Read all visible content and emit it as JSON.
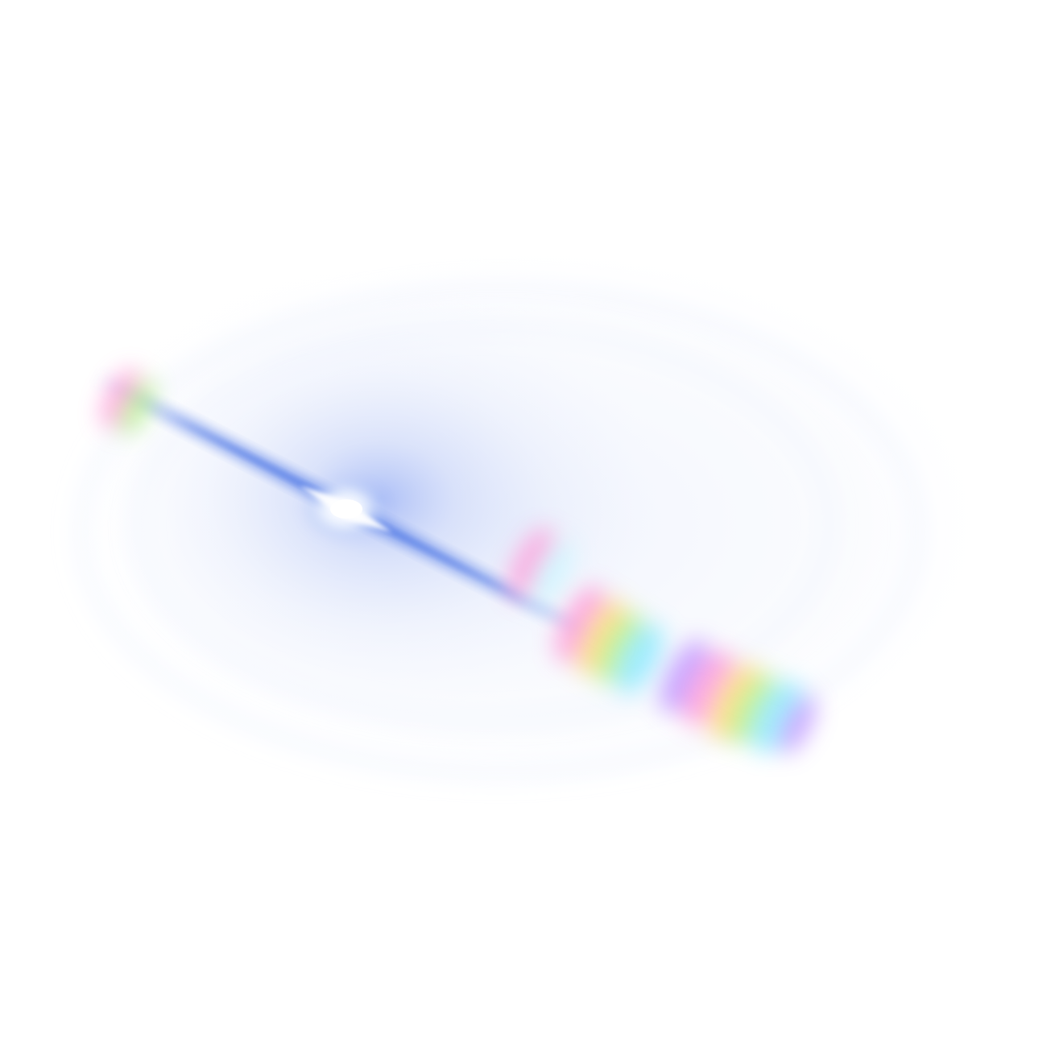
{
  "image": {
    "subject": "lens-flare",
    "background_color": "#ffffff",
    "colors": {
      "halo": "#6f8ff0",
      "halo_light": "#dfe7fb",
      "streak": "#5f84e8",
      "core": "#ffffff",
      "rainbow": [
        "#ff8fd6",
        "#ffd36b",
        "#a8f07a",
        "#7fe6ff",
        "#b98cff"
      ]
    }
  }
}
